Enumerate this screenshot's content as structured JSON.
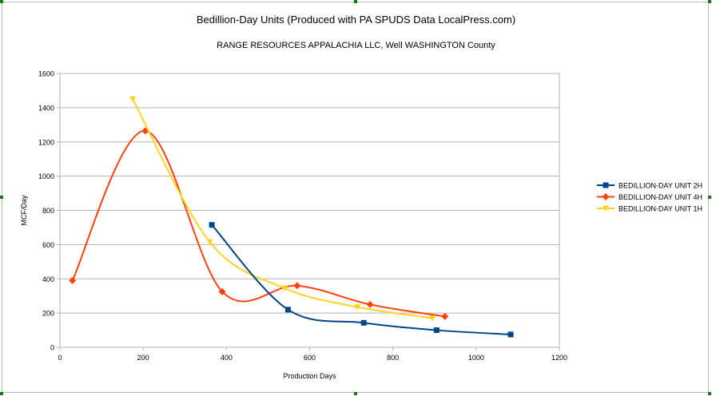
{
  "chart_data": {
    "type": "line",
    "title": "Bedillion-Day Units (Produced with PA SPUDS Data LocalPress.com)",
    "subtitle": "RANGE RESOURCES APPALACHIA LLC, Well  WASHINGTON County",
    "xlabel": "Production Days",
    "ylabel": "MCF/Day",
    "xlim": [
      0,
      1200
    ],
    "ylim": [
      0,
      1600
    ],
    "xticks": [
      0,
      200,
      400,
      600,
      800,
      1000,
      1200
    ],
    "yticks": [
      0,
      200,
      400,
      600,
      800,
      1000,
      1200,
      1400,
      1600
    ],
    "grid": "horizontal",
    "legend": "right",
    "series": [
      {
        "name": "BEDILLION-DAY UNIT 2H",
        "color": "#004586",
        "marker": "square",
        "x": [
          365,
          548,
          730,
          905,
          1083
        ],
        "y": [
          715,
          220,
          143,
          100,
          75
        ]
      },
      {
        "name": "BEDILLION-DAY UNIT 4H",
        "color": "#ff420e",
        "marker": "diamond",
        "x": [
          30,
          205,
          390,
          570,
          745,
          925
        ],
        "y": [
          390,
          1265,
          325,
          360,
          250,
          180
        ]
      },
      {
        "name": "BEDILLION-DAY UNIT 1H",
        "color": "#ffd320",
        "marker": "triangle",
        "x": [
          175,
          360,
          540,
          715,
          895
        ],
        "y": [
          1450,
          615,
          345,
          235,
          170
        ]
      }
    ]
  }
}
